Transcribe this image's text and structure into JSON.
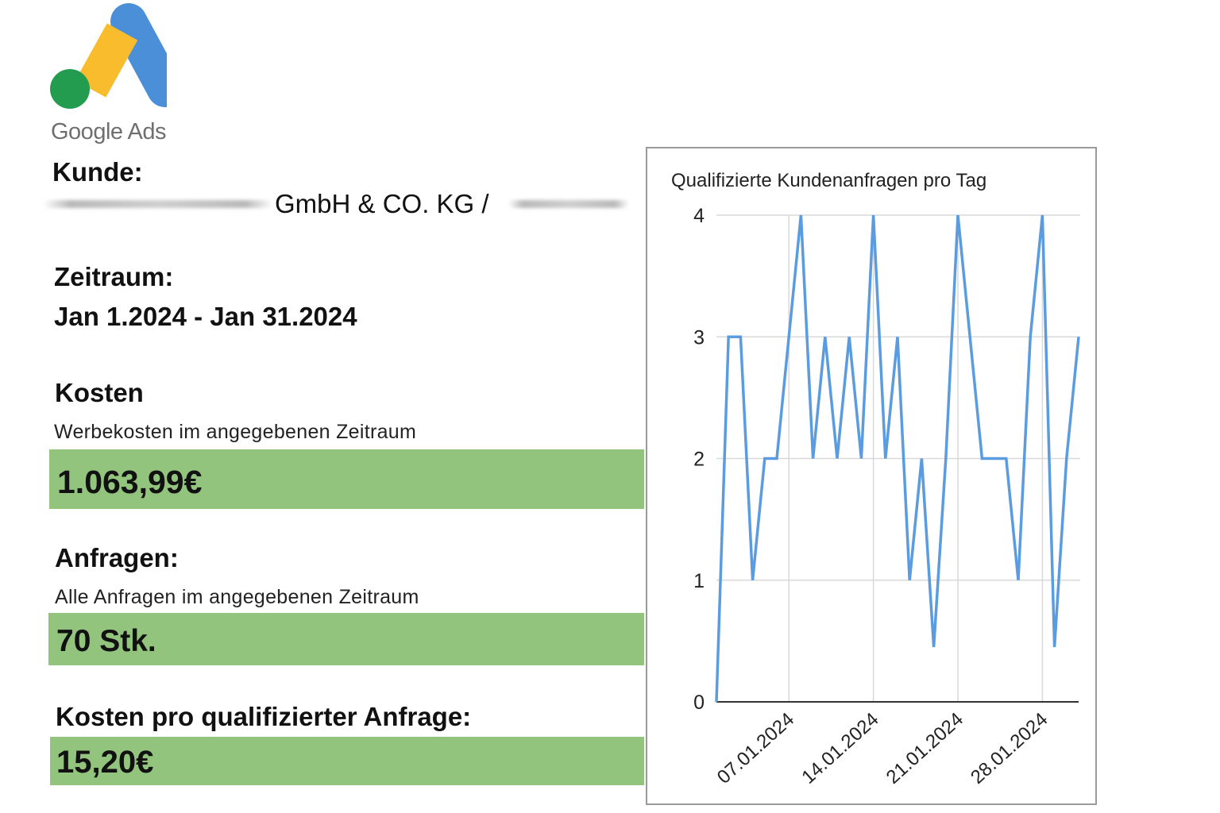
{
  "logo": {
    "text": "Google Ads",
    "colors": {
      "blue": "#4a8fd8",
      "yellow": "#f9bc2c",
      "green": "#239c50"
    }
  },
  "client": {
    "label": "Kunde:",
    "name_visible": "GmbH & CO. KG /"
  },
  "period": {
    "label": "Zeitraum:",
    "value": "Jan 1.2024 - Jan 31.2024"
  },
  "costs": {
    "label": "Kosten",
    "description": "Werbekosten im angegebenen Zeitraum",
    "value": "1.063,99€"
  },
  "requests": {
    "label": "Anfragen:",
    "description": "Alle Anfragen im angegebenen Zeitraum",
    "value": "70 Stk."
  },
  "cost_per_request": {
    "label": "Kosten pro qualifizierter Anfrage:",
    "value": "15,20€"
  },
  "colors": {
    "highlight": "#93c47d",
    "line": "#5b9be0",
    "grid": "#d9d9d9"
  },
  "chart_data": {
    "type": "line",
    "title": "Qualifizierte Kundenanfragen pro Tag",
    "xlabel": "",
    "ylabel": "",
    "ylim": [
      0,
      4
    ],
    "yticks": [
      "0",
      "1",
      "2",
      "3",
      "4"
    ],
    "xticks": [
      "07.01.2024",
      "14.01.2024",
      "21.01.2024",
      "28.01.2024"
    ],
    "grid": true,
    "legend": "none",
    "series": [
      {
        "x": [
          "01.01.2024",
          "02.01.2024",
          "03.01.2024",
          "04.01.2024",
          "05.01.2024",
          "06.01.2024",
          "07.01.2024",
          "08.01.2024",
          "09.01.2024",
          "10.01.2024",
          "11.01.2024",
          "12.01.2024",
          "13.01.2024",
          "14.01.2024",
          "15.01.2024",
          "16.01.2024",
          "17.01.2024",
          "18.01.2024",
          "19.01.2024",
          "20.01.2024",
          "21.01.2024",
          "22.01.2024",
          "23.01.2024",
          "24.01.2024",
          "25.01.2024",
          "26.01.2024",
          "27.01.2024",
          "28.01.2024",
          "29.01.2024",
          "30.01.2024",
          "31.01.2024"
        ],
        "values": [
          0,
          3,
          3,
          1,
          2,
          2,
          3,
          4,
          2,
          3,
          2,
          3,
          2,
          4,
          2,
          3,
          1,
          2,
          0.45,
          2,
          4,
          3,
          2,
          2,
          2,
          1,
          3,
          4,
          0.45,
          2,
          3
        ]
      }
    ]
  }
}
